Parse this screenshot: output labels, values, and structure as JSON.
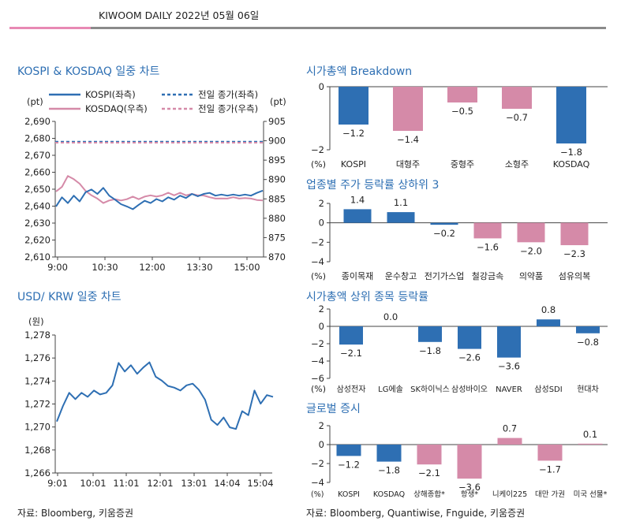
{
  "header": {
    "title": "KIWOOM DAILY 2022년 05월 06일"
  },
  "sections": {
    "kospi_kosdaq": "KOSPI & KOSDAQ 일중 차트",
    "usd_krw": "USD/ KRW 일중 차트",
    "mcap_breakdown": "시가총액 Breakdown",
    "sector": "업종별 주가 등락률 상하위 3",
    "top_mcap": "시가총액 상위 종목 등락률",
    "global": "글로벌 증시"
  },
  "sources": {
    "left": "자료: Bloomberg, 키움증권",
    "right": "자료: Bloomberg, Quantiwise, Fnguide, 키움증권"
  },
  "colors": {
    "blue": "#2e6fb3",
    "pink": "#d58aa8",
    "accent_pink": "#e889b4"
  },
  "chart_data": [
    {
      "id": "kospi_kosdaq",
      "type": "line",
      "left_unit": "(pt)",
      "right_unit": "(pt)",
      "ylim_left": [
        2610,
        2690
      ],
      "ylim_right": [
        870,
        905
      ],
      "yticks_left": [
        "2,690",
        "2,680",
        "2,670",
        "2,660",
        "2,650",
        "2,640",
        "2,630",
        "2,620",
        "2,610"
      ],
      "yticks_right": [
        "905",
        "900",
        "895",
        "890",
        "885",
        "880",
        "875",
        "870"
      ],
      "xticks": [
        "9:00",
        "10:30",
        "12:00",
        "13:30",
        "15:00"
      ],
      "legend": [
        "KOSPI(좌측)",
        "KOSDAQ(우측)",
        "전일 종가(좌측)",
        "전일 종가(우측)"
      ],
      "kospi_prev_close": 2678,
      "kosdaq_prev_close": 899.5,
      "kospi_points": [
        2640,
        2645,
        2642,
        2646,
        2643,
        2648,
        2650,
        2647,
        2651,
        2646,
        2644,
        2641,
        2640,
        2638,
        2641,
        2643,
        2642,
        2644,
        2643,
        2645,
        2644,
        2646,
        2645,
        2647,
        2646,
        2647,
        2648,
        2646,
        2647,
        2646,
        2647,
        2646,
        2647,
        2646,
        2648,
        2649
      ],
      "kosdaq_points": [
        887,
        888,
        891,
        890,
        889,
        887,
        886,
        885,
        884,
        884.5,
        885,
        884.5,
        885,
        885.5,
        885,
        885.5,
        886,
        885.5,
        886,
        886.5,
        886,
        886.5,
        886,
        886.2,
        886,
        885.8,
        885.5,
        885,
        885.2,
        885,
        885.5,
        885,
        885.3,
        885,
        884.8,
        884.5
      ]
    },
    {
      "id": "usd_krw",
      "type": "line",
      "unit": "(원)",
      "ylim": [
        1266,
        1278
      ],
      "yticks": [
        "1,278",
        "1,276",
        "1,274",
        "1,272",
        "1,270",
        "1,268",
        "1,266"
      ],
      "xticks": [
        "9:01",
        "10:01",
        "11:01",
        "12:01",
        "13:01",
        "14:04",
        "15:04"
      ],
      "points": [
        1270.5,
        1271.8,
        1273,
        1272.4,
        1273,
        1272.6,
        1273.2,
        1272.8,
        1273,
        1273.6,
        1275.6,
        1274.8,
        1275.4,
        1274.6,
        1275.2,
        1275.6,
        1274.4,
        1274,
        1273.6,
        1273.4,
        1273.2,
        1273.6,
        1273.8,
        1273.2,
        1272.4,
        1270.6,
        1270.2,
        1270.8,
        1270,
        1269.8,
        1271.4,
        1271,
        1273.2,
        1272,
        1272.8,
        1272.6
      ]
    },
    {
      "id": "mcap_breakdown",
      "type": "bar",
      "unit": "(%)",
      "ylim": [
        -2,
        0
      ],
      "yticks": [
        "0",
        "-2"
      ],
      "categories": [
        "KOSPI",
        "대형주",
        "중형주",
        "소형주",
        "KOSDAQ"
      ],
      "values": [
        -1.2,
        -1.4,
        -0.5,
        -0.7,
        -1.8
      ],
      "labels": [
        "−1.2",
        "−1.4",
        "−0.5",
        "−0.7",
        "−1.8"
      ],
      "colors": [
        "#2e6fb3",
        "#d58aa8",
        "#d58aa8",
        "#d58aa8",
        "#2e6fb3"
      ]
    },
    {
      "id": "sector",
      "type": "bar",
      "unit": "(%)",
      "ylim": [
        -4,
        2
      ],
      "yticks": [
        "2",
        "0",
        "-2",
        "-4"
      ],
      "categories": [
        "종이목재",
        "운수창고",
        "전기가스업",
        "철강금속",
        "의약품",
        "섬유의복"
      ],
      "values": [
        1.4,
        1.1,
        -0.2,
        -1.6,
        -2.0,
        -2.3
      ],
      "labels": [
        "1.4",
        "1.1",
        "−0.2",
        "−1.6",
        "−2.0",
        "−2.3"
      ],
      "colors": [
        "#2e6fb3",
        "#2e6fb3",
        "#2e6fb3",
        "#d58aa8",
        "#d58aa8",
        "#d58aa8"
      ]
    },
    {
      "id": "top_mcap",
      "type": "bar",
      "unit": "(%)",
      "ylim": [
        -6,
        2
      ],
      "yticks": [
        "2",
        "0",
        "-2",
        "-4",
        "-6"
      ],
      "categories": [
        "삼성전자",
        "LG에솔",
        "SK하이닉스",
        "삼성바이오",
        "NAVER",
        "삼성SDI",
        "현대차"
      ],
      "values": [
        -2.1,
        0.0,
        -1.8,
        -2.6,
        -3.6,
        0.8,
        -0.8
      ],
      "labels": [
        "−2.1",
        "0.0",
        "−1.8",
        "−2.6",
        "−3.6",
        "0.8",
        "−0.8"
      ],
      "colors": [
        "#2e6fb3",
        "#2e6fb3",
        "#2e6fb3",
        "#2e6fb3",
        "#2e6fb3",
        "#2e6fb3",
        "#2e6fb3"
      ]
    },
    {
      "id": "global",
      "type": "bar",
      "unit": "(%)",
      "ylim": [
        -4,
        2
      ],
      "yticks": [
        "2",
        "0",
        "-2",
        "-4"
      ],
      "categories": [
        "KOSPI",
        "KOSDAQ",
        "상해종합*",
        "항생*",
        "니케이225",
        "대만 가권",
        "미국 선물*"
      ],
      "values": [
        -1.2,
        -1.8,
        -2.1,
        -3.6,
        0.7,
        -1.7,
        0.1
      ],
      "labels": [
        "−1.2",
        "−1.8",
        "−2.1",
        "−3.6",
        "0.7",
        "−1.7",
        "0.1"
      ],
      "colors": [
        "#2e6fb3",
        "#2e6fb3",
        "#d58aa8",
        "#d58aa8",
        "#d58aa8",
        "#d58aa8",
        "#d58aa8"
      ]
    }
  ]
}
